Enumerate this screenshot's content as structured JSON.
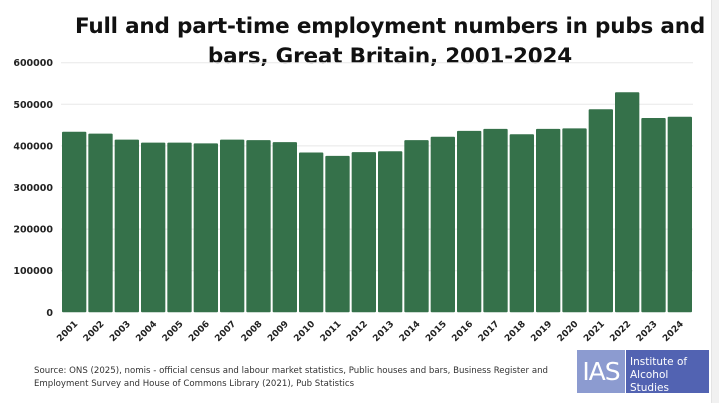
{
  "chart_data": {
    "type": "bar",
    "title": "Full and part-time employment numbers in pubs and bars, Great Britain, 2001-2024",
    "title_lines": [
      "Full and part-time employment numbers in pubs and",
      "bars, Great Britain, 2001-2024"
    ],
    "xlabel": "",
    "ylabel": "",
    "ylim": [
      0,
      600000
    ],
    "yticks": [
      "0",
      "100000",
      "200000",
      "300000",
      "400000",
      "500000",
      "600000"
    ],
    "grid": true,
    "bar_color": "#35714a",
    "categories": [
      "2001",
      "2002",
      "2003",
      "2004",
      "2005",
      "2006",
      "2007",
      "2008",
      "2009",
      "2010",
      "2011",
      "2012",
      "2013",
      "2014",
      "2015",
      "2016",
      "2017",
      "2018",
      "2019",
      "2020",
      "2021",
      "2022",
      "2023",
      "2024"
    ],
    "values": [
      434000,
      429500,
      415000,
      408000,
      408000,
      406000,
      415000,
      414000,
      409000,
      384000,
      376000,
      385000,
      387000,
      414000,
      422000,
      436000,
      441000,
      428000,
      441000,
      442000,
      488000,
      529000,
      467000,
      470000
    ]
  },
  "source": {
    "line1": "Source: ONS (2025), nomis - official census and labour market statistics, Public houses and bars, Business Register and",
    "line2": "Employment Survey and House of Commons Library (2021), Pub Statistics"
  },
  "logo": {
    "abbr": "IAS",
    "line1": "Institute of",
    "line2": "Alcohol Studies"
  }
}
